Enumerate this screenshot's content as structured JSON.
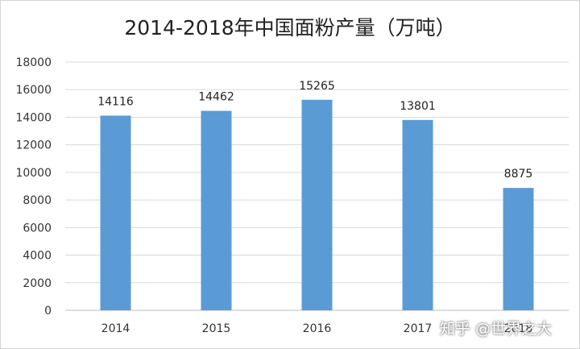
{
  "chart_data": {
    "type": "bar",
    "title": "2014-2018年中国面粉产量（万吨）",
    "categories": [
      "2014",
      "2015",
      "2016",
      "2017",
      "2018"
    ],
    "values": [
      14116,
      14462,
      15265,
      13801,
      8875
    ],
    "ylim": [
      0,
      18000
    ],
    "yticks": [
      0,
      2000,
      4000,
      6000,
      8000,
      10000,
      12000,
      14000,
      16000,
      18000
    ],
    "xlabel": "",
    "ylabel": "",
    "grid": true,
    "legend": "none",
    "bar_color": "#5b9bd5",
    "grid_color": "#d9d9d9"
  },
  "watermark": "知乎 @世界之大"
}
